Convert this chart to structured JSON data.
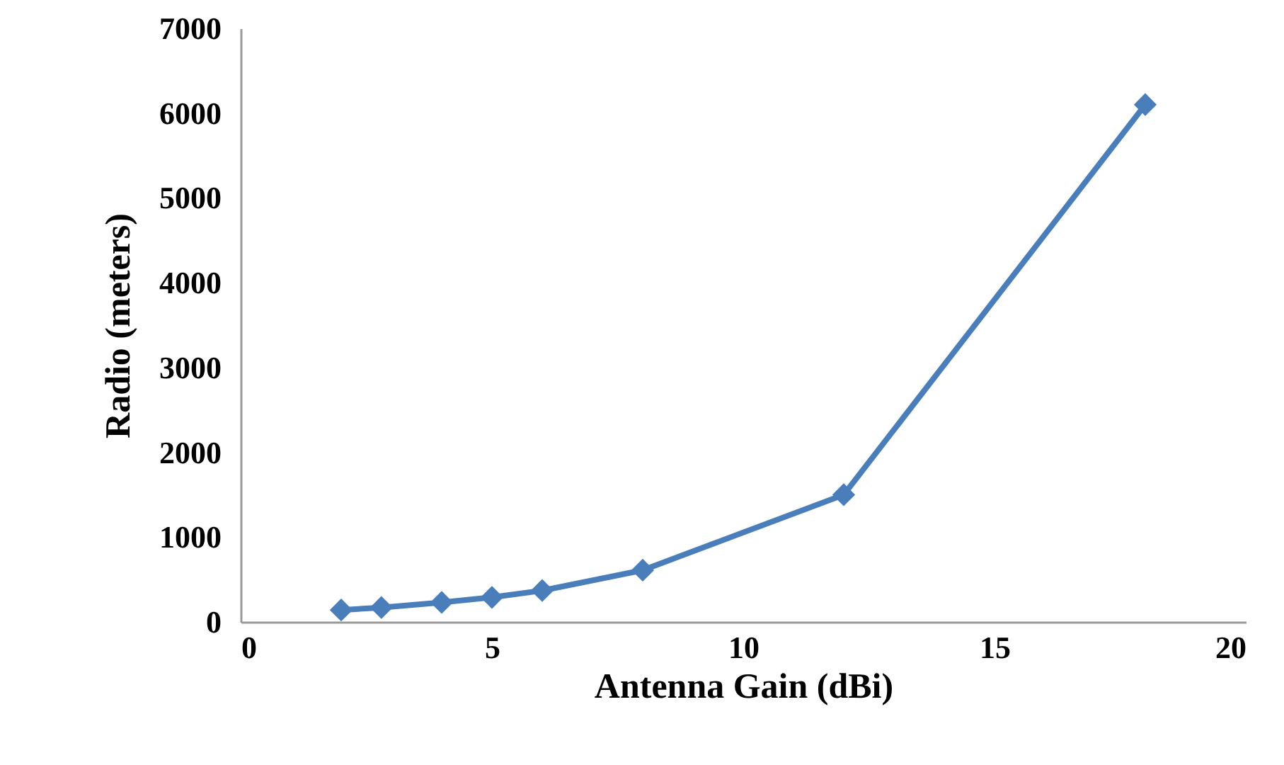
{
  "chart_data": {
    "type": "line",
    "xlabel": "Antenna Gain (dBi)",
    "ylabel": "Radio (meters)",
    "x": [
      2,
      2.8,
      4,
      5,
      6,
      8,
      12,
      18
    ],
    "series": [
      {
        "color": "#4a7ebb",
        "values": [
          140,
          170,
          230,
          290,
          370,
          610,
          1500,
          6100
        ]
      }
    ],
    "xlim": [
      0,
      20
    ],
    "xticks": [
      0,
      5,
      10,
      15,
      20
    ],
    "ylim": [
      0,
      7000
    ],
    "yticks": [
      0,
      1000,
      2000,
      3000,
      4000,
      5000,
      6000,
      7000
    ],
    "grid": false,
    "marker": "diamond",
    "line_style": "solid"
  }
}
